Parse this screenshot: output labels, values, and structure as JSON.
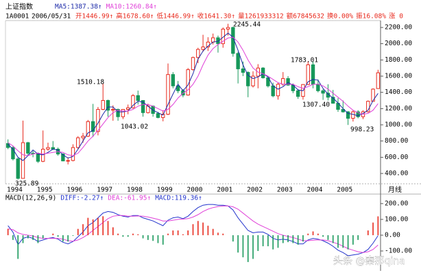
{
  "header": {
    "title": "上证指数",
    "code": "1A0001",
    "date": "2006/05/31",
    "quote": [
      "开1446.99↑",
      "高1678.60↑",
      "低1446.99↑",
      "收1641.30↑",
      "量1261933312",
      "额67845632",
      "换0.00%",
      "振16.08%",
      "涨 0"
    ],
    "watermark": "头条 @秦那qina"
  },
  "chart_data": [
    {
      "type": "candlestick",
      "x_label": "月线",
      "up_color": "#e8291c",
      "down_color": "#17985a",
      "categories": [
        "1994",
        null,
        null,
        null,
        null,
        null,
        "1995",
        null,
        null,
        null,
        null,
        null,
        "1996",
        null,
        null,
        null,
        null,
        null,
        "1997",
        null,
        null,
        null,
        null,
        null,
        "1998",
        null,
        null,
        null,
        null,
        null,
        "1999",
        null,
        null,
        null,
        null,
        null,
        "2000",
        null,
        null,
        null,
        null,
        null,
        "2001",
        null,
        null,
        null,
        null,
        null,
        "2002",
        null,
        null,
        null,
        null,
        null,
        "2003",
        null,
        null,
        null,
        null,
        null,
        "2004",
        null,
        null,
        null,
        null,
        null,
        "2005",
        null,
        null,
        null,
        null,
        null,
        null,
        null,
        null
      ],
      "ohlc": [
        [
          770,
          820,
          700,
          720
        ],
        [
          720,
          740,
          560,
          580
        ],
        [
          580,
          600,
          325.89,
          340
        ],
        [
          340,
          1052,
          340,
          780
        ],
        [
          780,
          790,
          620,
          650
        ],
        [
          650,
          680,
          600,
          647
        ],
        [
          647,
          660,
          530,
          550
        ],
        [
          550,
          930,
          540,
          700
        ],
        [
          700,
          780,
          680,
          720
        ],
        [
          720,
          800,
          690,
          700
        ],
        [
          700,
          720,
          620,
          640
        ],
        [
          640,
          650,
          550,
          555
        ],
        [
          555,
          600,
          512,
          560
        ],
        [
          560,
          760,
          550,
          720
        ],
        [
          720,
          860,
          700,
          840
        ],
        [
          840,
          900,
          780,
          860
        ],
        [
          860,
          1060,
          850,
          1040
        ],
        [
          1040,
          1258,
          850,
          917
        ],
        [
          917,
          1220,
          870,
          1190
        ],
        [
          1190,
          1510.18,
          1180,
          1300
        ],
        [
          1300,
          1310,
          1100,
          1180
        ],
        [
          1180,
          1240,
          1050,
          1190
        ],
        [
          1190,
          1200,
          1050,
          1100
        ],
        [
          1100,
          1190,
          1070,
          1190
        ],
        [
          1190,
          1250,
          1130,
          1210
        ],
        [
          1210,
          1380,
          1200,
          1360
        ],
        [
          1360,
          1422,
          1250,
          1300
        ],
        [
          1300,
          1300,
          1100,
          1150
        ],
        [
          1150,
          1260,
          1140,
          1230
        ],
        [
          1230,
          1240,
          1100,
          1140
        ],
        [
          1140,
          1160,
          1080,
          1090
        ],
        [
          1090,
          1180,
          1043.02,
          1130
        ],
        [
          1130,
          1756,
          1120,
          1620
        ],
        [
          1620,
          1650,
          1450,
          1480
        ],
        [
          1480,
          1540,
          1390,
          1420
        ],
        [
          1420,
          1440,
          1340,
          1367
        ],
        [
          1367,
          1700,
          1360,
          1680
        ],
        [
          1680,
          1840,
          1670,
          1830
        ],
        [
          1830,
          1950,
          1760,
          1930
        ],
        [
          1930,
          2110,
          1900,
          1960
        ],
        [
          1960,
          2080,
          1910,
          2020
        ],
        [
          2020,
          2125,
          1990,
          2073
        ],
        [
          2073,
          2100,
          1890,
          2000
        ],
        [
          2000,
          2200,
          1950,
          2180
        ],
        [
          2180,
          2245.44,
          2100,
          2200
        ],
        [
          2200,
          2210,
          1840,
          1880
        ],
        [
          1880,
          1900,
          1510,
          1690
        ],
        [
          1690,
          1780,
          1600,
          1646
        ],
        [
          1646,
          1660,
          1340,
          1480
        ],
        [
          1480,
          1660,
          1460,
          1600
        ],
        [
          1600,
          1748,
          1450,
          1700
        ],
        [
          1700,
          1710,
          1570,
          1580
        ],
        [
          1580,
          1600,
          1460,
          1480
        ],
        [
          1480,
          1520,
          1340,
          1357
        ],
        [
          1357,
          1520,
          1310,
          1500
        ],
        [
          1500,
          1650,
          1480,
          1570
        ],
        [
          1570,
          1600,
          1480,
          1490
        ],
        [
          1490,
          1510,
          1390,
          1420
        ],
        [
          1420,
          1440,
          1320,
          1350
        ],
        [
          1350,
          1500,
          1310,
          1497
        ],
        [
          1497,
          1780,
          1490,
          1740
        ],
        [
          1740,
          1783.01,
          1450,
          1500
        ],
        [
          1500,
          1560,
          1400,
          1420
        ],
        [
          1420,
          1440,
          1307.4,
          1390
        ],
        [
          1390,
          1500,
          1300,
          1340
        ],
        [
          1340,
          1430,
          1260,
          1266
        ],
        [
          1266,
          1330,
          1160,
          1190
        ],
        [
          1190,
          1300,
          1150,
          1160
        ],
        [
          1160,
          1170,
          998.23,
          1080
        ],
        [
          1080,
          1180,
          1040,
          1160
        ],
        [
          1160,
          1180,
          1080,
          1100
        ],
        [
          1100,
          1180,
          1070,
          1161
        ],
        [
          1161,
          1300,
          1150,
          1290
        ],
        [
          1290,
          1450,
          1290,
          1440
        ],
        [
          1446.99,
          1678.6,
          1446.99,
          1641.3
        ]
      ],
      "series": [
        {
          "name": "MA5:1387.38↑",
          "color": "#1c2aa8",
          "values": [
            760,
            700,
            600,
            560,
            620,
            690,
            640,
            630,
            660,
            700,
            690,
            630,
            590,
            610,
            700,
            800,
            900,
            930,
            1020,
            1130,
            1220,
            1220,
            1160,
            1160,
            1170,
            1240,
            1290,
            1280,
            1230,
            1180,
            1150,
            1120,
            1250,
            1380,
            1500,
            1420,
            1490,
            1630,
            1810,
            1910,
            1970,
            2020,
            2030,
            2080,
            2130,
            2080,
            1920,
            1740,
            1610,
            1570,
            1590,
            1630,
            1590,
            1480,
            1440,
            1470,
            1520,
            1490,
            1430,
            1420,
            1530,
            1560,
            1550,
            1450,
            1380,
            1330,
            1270,
            1200,
            1140,
            1130,
            1110,
            1140,
            1180,
            1300,
            1387.38
          ]
        },
        {
          "name": "MA10:1260.84↑",
          "color": "#e040d8",
          "values": [
            780,
            740,
            680,
            630,
            620,
            640,
            650,
            640,
            650,
            660,
            670,
            660,
            630,
            620,
            650,
            720,
            800,
            860,
            930,
            1010,
            1090,
            1150,
            1180,
            1170,
            1170,
            1190,
            1230,
            1250,
            1250,
            1230,
            1200,
            1170,
            1190,
            1250,
            1330,
            1390,
            1430,
            1500,
            1600,
            1740,
            1860,
            1940,
            1990,
            2030,
            2070,
            2080,
            2020,
            1920,
            1800,
            1700,
            1650,
            1630,
            1600,
            1560,
            1520,
            1500,
            1500,
            1500,
            1470,
            1450,
            1470,
            1500,
            1500,
            1480,
            1440,
            1390,
            1340,
            1290,
            1230,
            1180,
            1150,
            1130,
            1140,
            1180,
            1260.84
          ]
        }
      ],
      "annotations": [
        "2245.44",
        "1510.18",
        "1043.02",
        "1783.01",
        "1307.40",
        "998.23",
        "325.89"
      ],
      "ylim": [
        273,
        2285
      ],
      "yticks": [
        {
          "value": 400,
          "label": "400.00"
        },
        {
          "value": 600,
          "label": "600.00"
        },
        {
          "value": 800,
          "label": "800.00"
        },
        {
          "value": 1000,
          "label": "1000.00"
        },
        {
          "value": 1200,
          "label": "1200.00"
        },
        {
          "value": 1400,
          "label": "1400.00"
        },
        {
          "value": 1600,
          "label": "1600.00"
        },
        {
          "value": 1800,
          "label": "1800.00"
        },
        {
          "value": 2000,
          "label": "2000.00"
        },
        {
          "value": 2200,
          "label": "2200.00"
        }
      ]
    },
    {
      "type": "macd",
      "title": "MACD(12,26,9)",
      "series": [
        {
          "name": "DIFF:-2.27↑",
          "type": "line",
          "color": "#2233cc",
          "values": [
            60,
            20,
            -60,
            -20,
            -10,
            -20,
            -40,
            -30,
            -20,
            -15,
            -25,
            -45,
            -55,
            -40,
            -10,
            20,
            60,
            80,
            110,
            140,
            150,
            145,
            130,
            120,
            115,
            125,
            125,
            110,
            100,
            90,
            75,
            60,
            95,
            110,
            115,
            105,
            120,
            150,
            175,
            190,
            195,
            195,
            190,
            190,
            185,
            160,
            110,
            70,
            30,
            15,
            20,
            20,
            5,
            -20,
            -30,
            -25,
            -30,
            -40,
            -55,
            -55,
            -30,
            -20,
            -25,
            -35,
            -50,
            -70,
            -95,
            -110,
            -130,
            -125,
            -120,
            -110,
            -90,
            -50,
            -2.27
          ]
        },
        {
          "name": "DEA:-61.95↑",
          "type": "line",
          "color": "#e040d8",
          "values": [
            40,
            35,
            15,
            5,
            0,
            -5,
            -15,
            -20,
            -20,
            -20,
            -20,
            -25,
            -35,
            -38,
            -30,
            -15,
            5,
            30,
            55,
            80,
            105,
            120,
            125,
            125,
            120,
            120,
            122,
            120,
            115,
            108,
            100,
            90,
            90,
            95,
            100,
            102,
            105,
            115,
            130,
            150,
            165,
            175,
            182,
            185,
            185,
            180,
            165,
            140,
            115,
            90,
            70,
            55,
            40,
            25,
            10,
            0,
            -8,
            -15,
            -25,
            -35,
            -35,
            -32,
            -30,
            -30,
            -35,
            -45,
            -55,
            -70,
            -85,
            -95,
            -105,
            -110,
            -105,
            -90,
            -61.95
          ]
        },
        {
          "name": "MACD:119.36↑",
          "type": "bar",
          "label_color": "#2233cc",
          "color": "#e8291c",
          "negative_color": "#17985a",
          "values": [
            40,
            -30,
            -150,
            -50,
            -20,
            -30,
            -50,
            -20,
            0,
            10,
            -10,
            -40,
            -40,
            -4,
            40,
            70,
            110,
            100,
            110,
            120,
            90,
            50,
            10,
            -10,
            -10,
            10,
            6,
            -20,
            -30,
            -36,
            -50,
            -60,
            10,
            30,
            30,
            6,
            30,
            70,
            90,
            80,
            60,
            40,
            16,
            10,
            0,
            -40,
            -110,
            -140,
            -170,
            -150,
            -100,
            -70,
            -70,
            -90,
            -80,
            -50,
            -44,
            -50,
            -60,
            -40,
            10,
            24,
            10,
            -10,
            -30,
            -50,
            -80,
            -80,
            -90,
            -60,
            -30,
            0,
            30,
            80,
            119.36
          ]
        }
      ],
      "ylim": [
        -213,
        230
      ],
      "yticks": [
        {
          "value": -100,
          "label": "-100.00"
        },
        {
          "value": 0,
          "label": "0.00"
        },
        {
          "value": 100,
          "label": "100.00"
        },
        {
          "value": 200,
          "label": "200.00"
        }
      ]
    }
  ]
}
